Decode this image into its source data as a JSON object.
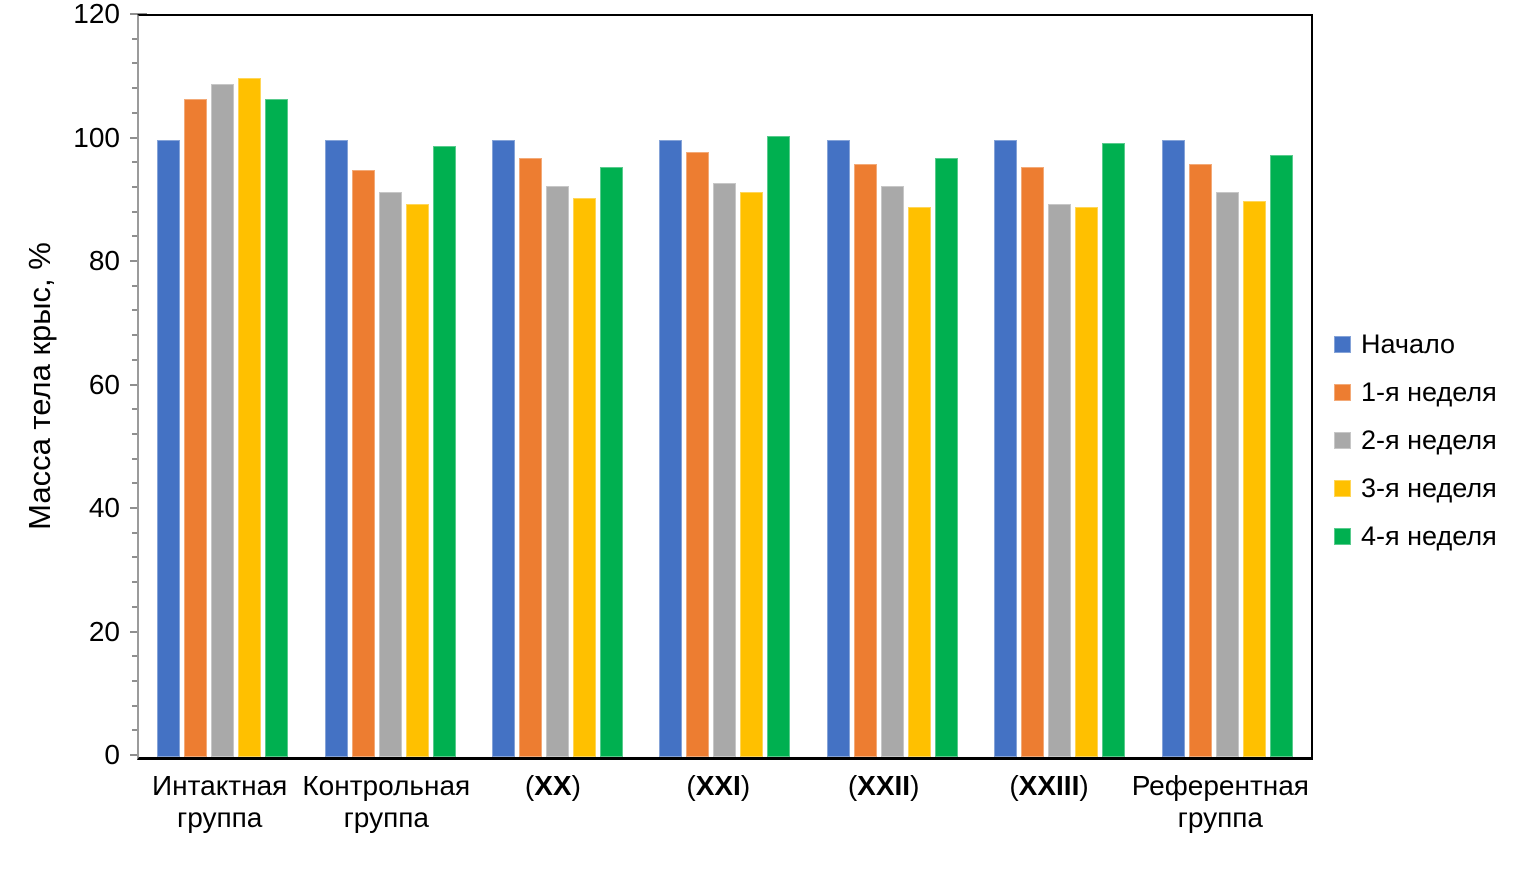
{
  "chart_data": {
    "type": "bar",
    "title": "",
    "xlabel": "",
    "ylabel": "Масса тела крыс, %",
    "ylim": [
      0,
      120
    ],
    "yticks": [
      0,
      20,
      40,
      60,
      80,
      100,
      120
    ],
    "minor_tick_step": 4,
    "grid": false,
    "legend_position": "right",
    "categories": [
      "Интактная группа",
      "Контрольная группа",
      "(XX)",
      "(XXI)",
      "(XXII)",
      "(XXIII)",
      "Референтная группа"
    ],
    "series": [
      {
        "name": "Начало",
        "color": "#4472C4",
        "values": [
          100,
          100,
          100,
          100,
          100,
          100,
          100
        ]
      },
      {
        "name": "1-я неделя",
        "color": "#ED7D31",
        "values": [
          106.5,
          95,
          97,
          98,
          96,
          95.5,
          96
        ]
      },
      {
        "name": "2-я неделя",
        "color": "#A9A9A9",
        "values": [
          109,
          91.5,
          92.5,
          93,
          92.5,
          89.5,
          91.5
        ]
      },
      {
        "name": "3-я неделя",
        "color": "#FFC000",
        "values": [
          110,
          89.5,
          90.5,
          91.5,
          89,
          89,
          90
        ]
      },
      {
        "name": "4-я неделя",
        "color": "#00B050",
        "values": [
          106.5,
          99,
          95.5,
          100.5,
          97,
          99.5,
          97.5
        ]
      }
    ],
    "colors": {
      "background": "#FFFFFF",
      "plot_border": "#000000",
      "axis_line": "#9B9B9B",
      "tick_marks": "#8F8F8F",
      "text": "#000000"
    }
  }
}
